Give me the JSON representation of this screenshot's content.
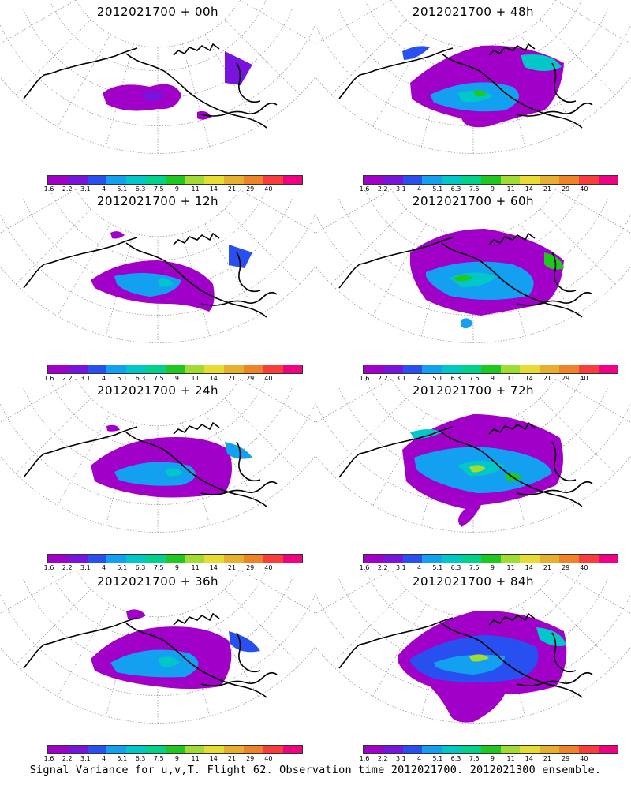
{
  "panels": [
    {
      "title": "2012021700 + 00h"
    },
    {
      "title": "2012021700 + 48h"
    },
    {
      "title": "2012021700 + 12h"
    },
    {
      "title": "2012021700 + 60h"
    },
    {
      "title": "2012021700 + 24h"
    },
    {
      "title": "2012021700 + 72h"
    },
    {
      "title": "2012021700 + 36h"
    },
    {
      "title": "2012021700 + 84h"
    }
  ],
  "colorbar": {
    "labels": [
      "1.6",
      "2.2",
      "3.1",
      "4",
      "5.1",
      "6.3",
      "7.5",
      "9",
      "11",
      "14",
      "21",
      "29",
      "40"
    ],
    "colors": [
      "#a000c8",
      "#7814dc",
      "#2850f0",
      "#14a0f0",
      "#00c8c8",
      "#00d28c",
      "#1ec81e",
      "#a0dc32",
      "#e6dc32",
      "#e6af2d",
      "#f08228",
      "#fa3c3c",
      "#f00082"
    ]
  },
  "footer": "Signal Variance for u,v,T. Flight 62. Observation time 2012021700. 2012021300 ensemble."
}
